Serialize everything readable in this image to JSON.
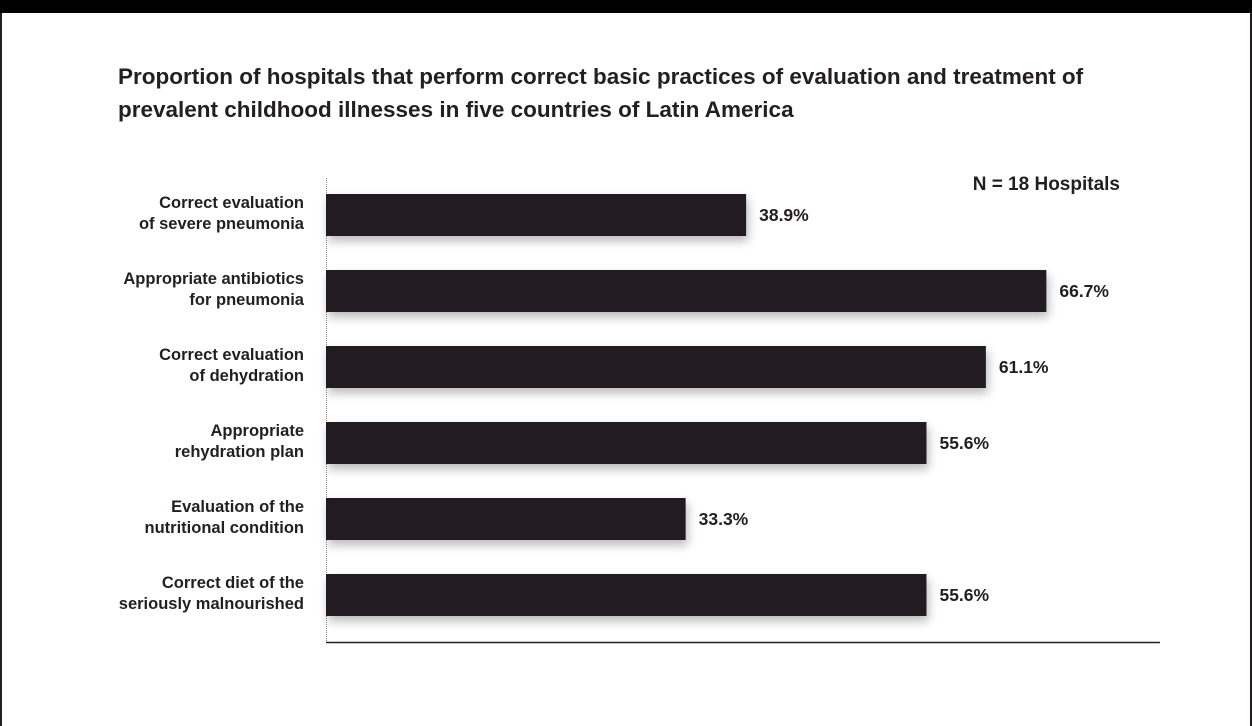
{
  "chart_data": {
    "type": "bar",
    "orientation": "horizontal",
    "title": "Proportion of hospitals that perform correct basic practices of evaluation and treatment of\nprevalent childhood illnesses in five countries of Latin America",
    "note": "N = 18 Hospitals",
    "categories": [
      [
        "Correct evaluation",
        "of severe pneumonia"
      ],
      [
        "Appropriate antibiotics",
        "for pneumonia"
      ],
      [
        "Correct evaluation",
        "of dehydration"
      ],
      [
        "Appropriate",
        "rehydration plan"
      ],
      [
        "Evaluation of the",
        "nutritional condition"
      ],
      [
        "Correct diet of the",
        "seriously malnourished"
      ]
    ],
    "values": [
      38.9,
      66.7,
      61.1,
      55.6,
      33.3,
      55.6
    ],
    "value_labels": [
      "38.9%",
      "66.7%",
      "61.1%",
      "55.6%",
      "33.3%",
      "55.6%"
    ],
    "xlim": [
      0,
      100
    ],
    "grid": false,
    "legend": "none",
    "bar_color": "#231f20"
  }
}
